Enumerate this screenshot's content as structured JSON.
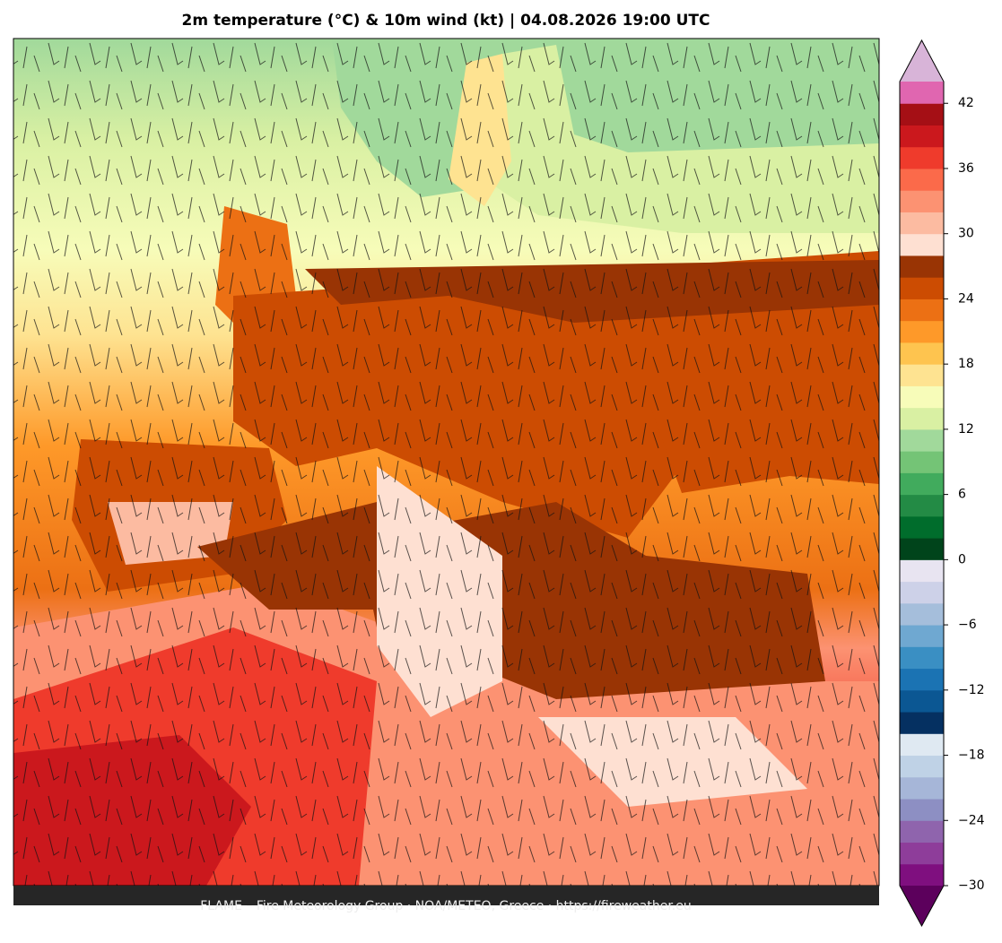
{
  "title": "2m temperature (°C) & 10m wind (kt)  |  04.08.2026 19:00 UTC",
  "footer": "FLAME – Fire Meteorology Group · NOA/METEO, Greece · https://fireweather.eu",
  "colorbar": {
    "lim": [
      -30,
      44
    ],
    "ticks": [
      {
        "value": -30,
        "label": "−30"
      },
      {
        "value": -24,
        "label": "−24"
      },
      {
        "value": -18,
        "label": "−18"
      },
      {
        "value": -12,
        "label": "−12"
      },
      {
        "value": -6,
        "label": "−6"
      },
      0,
      6,
      12,
      18,
      24,
      30,
      36,
      42
    ],
    "colors": [
      "#7f0f7f",
      "#8e3d9a",
      "#8f64ad",
      "#8d8fc3",
      "#a6b6d8",
      "#bfd2e6",
      "#dfe9f2",
      "#053061",
      "#0b5793",
      "#1b73b3",
      "#3a8fc3",
      "#6fa8d1",
      "#a5bedb",
      "#cdd1e8",
      "#e8e4f1",
      "#00441b",
      "#006d2c",
      "#238b45",
      "#41ab5d",
      "#74c476",
      "#a1d99b",
      "#d9f0a3",
      "#f7fcb9",
      "#fee391",
      "#fec44f",
      "#fe9929",
      "#ec7014",
      "#cc4c02",
      "#993404",
      "#fee0d2",
      "#fcbba1",
      "#fc9272",
      "#fb6a4a",
      "#ef3b2c",
      "#cb181d",
      "#a50f15",
      "#e066b0"
    ],
    "extend_colors": [
      "#5c005c",
      "#d8b4d8"
    ]
  }
}
